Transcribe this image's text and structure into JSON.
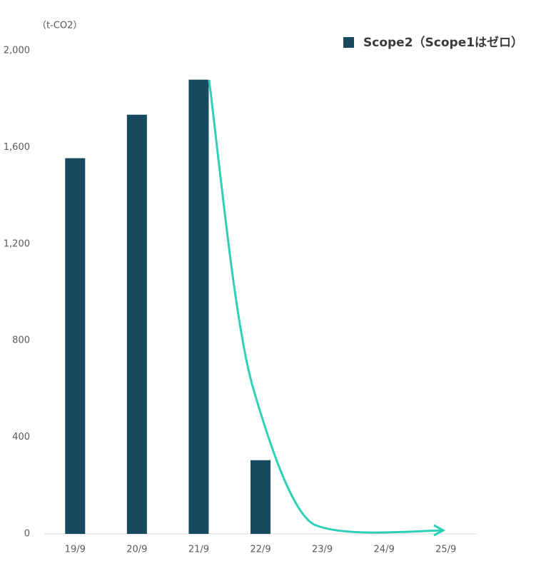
{
  "chart_data": {
    "type": "bar",
    "unit_label": "（t-CO2）",
    "categories": [
      "19/9",
      "20/9",
      "21/9",
      "22/9",
      "23/9",
      "24/9",
      "25/9"
    ],
    "series": [
      {
        "name": "Scope2（Scope1はゼロ）",
        "color": "#174a5e",
        "values": [
          1555,
          1735,
          1880,
          305,
          null,
          null,
          null
        ]
      }
    ],
    "ylim": [
      0,
      2000
    ],
    "yticks": [
      0,
      400,
      800,
      {
        "value": 1200,
        "label": "1,200"
      },
      {
        "value": 1600,
        "label": "1,600"
      },
      {
        "value": 2000,
        "label": "2,000"
      }
    ],
    "legend": "top-right"
  }
}
